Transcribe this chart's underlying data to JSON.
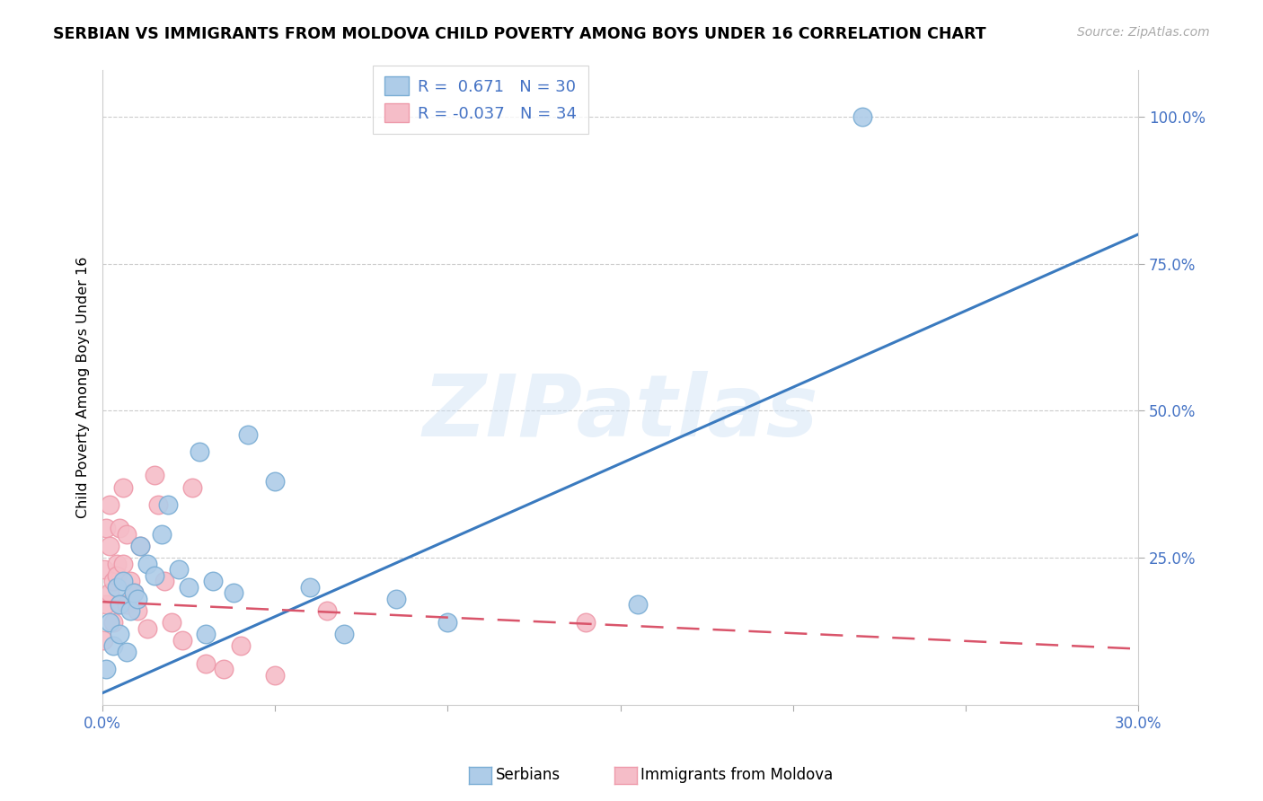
{
  "title": "SERBIAN VS IMMIGRANTS FROM MOLDOVA CHILD POVERTY AMONG BOYS UNDER 16 CORRELATION CHART",
  "source": "Source: ZipAtlas.com",
  "ylabel": "Child Poverty Among Boys Under 16",
  "xlim": [
    0.0,
    0.3
  ],
  "ylim": [
    0.0,
    1.08
  ],
  "xticks": [
    0.0,
    0.05,
    0.1,
    0.15,
    0.2,
    0.25,
    0.3
  ],
  "xtick_labels": [
    "0.0%",
    "",
    "",
    "",
    "",
    "",
    "30.0%"
  ],
  "yticks": [
    0.25,
    0.5,
    0.75,
    1.0
  ],
  "ytick_labels": [
    "25.0%",
    "50.0%",
    "75.0%",
    "100.0%"
  ],
  "serbian_color": "#aecce8",
  "serbian_edge": "#7aadd4",
  "moldova_color": "#f5bdc8",
  "moldova_edge": "#ee9aaa",
  "trend_blue_color": "#3a7abf",
  "trend_pink_color": "#d9546a",
  "R_serbian": 0.671,
  "N_serbian": 30,
  "R_moldova": -0.037,
  "N_moldova": 34,
  "watermark": "ZIPatlas",
  "blue_label": "Serbians",
  "pink_label": "Immigrants from Moldova",
  "tick_color": "#4472c4",
  "figsize": [
    14.06,
    8.92
  ],
  "dpi": 100,
  "serbian_x": [
    0.001,
    0.002,
    0.003,
    0.004,
    0.005,
    0.005,
    0.006,
    0.007,
    0.008,
    0.009,
    0.01,
    0.011,
    0.013,
    0.015,
    0.017,
    0.019,
    0.022,
    0.025,
    0.028,
    0.03,
    0.032,
    0.038,
    0.042,
    0.05,
    0.06,
    0.07,
    0.085,
    0.1,
    0.155,
    0.22
  ],
  "serbian_y": [
    0.06,
    0.14,
    0.1,
    0.2,
    0.17,
    0.12,
    0.21,
    0.09,
    0.16,
    0.19,
    0.18,
    0.27,
    0.24,
    0.22,
    0.29,
    0.34,
    0.23,
    0.2,
    0.43,
    0.12,
    0.21,
    0.19,
    0.46,
    0.38,
    0.2,
    0.12,
    0.18,
    0.14,
    0.17,
    1.0
  ],
  "moldova_x": [
    0.0003,
    0.0005,
    0.001,
    0.001,
    0.002,
    0.002,
    0.002,
    0.003,
    0.003,
    0.004,
    0.004,
    0.005,
    0.005,
    0.006,
    0.006,
    0.007,
    0.007,
    0.008,
    0.009,
    0.01,
    0.011,
    0.013,
    0.015,
    0.016,
    0.018,
    0.02,
    0.023,
    0.026,
    0.03,
    0.035,
    0.04,
    0.05,
    0.065,
    0.14
  ],
  "moldova_y": [
    0.11,
    0.23,
    0.3,
    0.17,
    0.34,
    0.27,
    0.19,
    0.21,
    0.14,
    0.24,
    0.22,
    0.3,
    0.17,
    0.37,
    0.24,
    0.17,
    0.29,
    0.21,
    0.19,
    0.16,
    0.27,
    0.13,
    0.39,
    0.34,
    0.21,
    0.14,
    0.11,
    0.37,
    0.07,
    0.06,
    0.1,
    0.05,
    0.16,
    0.14
  ],
  "blue_trend_x0": 0.0,
  "blue_trend_y0": 0.02,
  "blue_trend_x1": 0.3,
  "blue_trend_y1": 0.8,
  "pink_trend_x0": 0.0,
  "pink_trend_y0": 0.175,
  "pink_trend_x1": 0.3,
  "pink_trend_y1": 0.095
}
